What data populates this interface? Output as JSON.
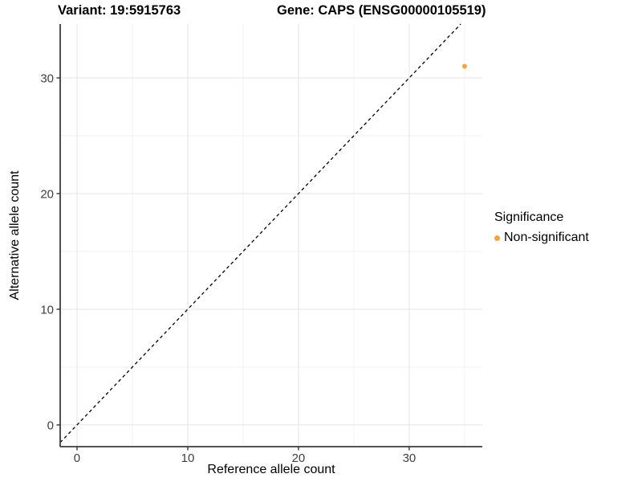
{
  "chart_data": {
    "type": "scatter",
    "title_left": "Variant: 19:5915763",
    "title_right": "Gene: CAPS (ENSG00000105519)",
    "xlabel": "Reference allele count",
    "ylabel": "Alternative allele count",
    "xlim": [
      -1.52,
      36.6
    ],
    "ylim": [
      -1.88,
      34.65
    ],
    "x_major_ticks": [
      0,
      10,
      20,
      30
    ],
    "y_major_ticks": [
      0,
      10,
      20,
      30
    ],
    "x_minor_gridlines": [
      5,
      15,
      25,
      35
    ],
    "y_minor_gridlines": [
      5,
      15,
      25
    ],
    "points": [
      {
        "x": 35,
        "y": 31,
        "series": "Non-significant"
      }
    ],
    "reference_line": {
      "slope": 1,
      "intercept": 0,
      "style": "dashed",
      "color": "#000000"
    },
    "legend": {
      "title": "Significance",
      "position": "right",
      "entries": [
        {
          "label": "Non-significant",
          "color": "#F9A242"
        }
      ]
    },
    "grid": true,
    "colors": {
      "point": "#F9A242",
      "grid_major": "#E4E4E4",
      "grid_minor": "#F2F2F2",
      "axis_line": "#3C3C3C",
      "tick_mark": "#333333",
      "tick_label": "#404040",
      "background": "#FFFFFF"
    }
  }
}
